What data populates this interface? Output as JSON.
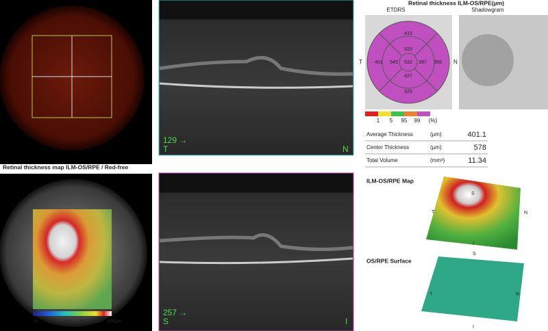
{
  "fundus_oct": {
    "scan_top": {
      "index_label": "129 →",
      "left": "T",
      "right": "N"
    },
    "scan_bottom": {
      "index_label": "257 →",
      "left": "S",
      "right": "I"
    }
  },
  "thickness_map": {
    "title": "Retinal thickness map ILM-OS/RPE / Red-free",
    "scale_labels": [
      0,
      100,
      200,
      300,
      400,
      "500µm"
    ]
  },
  "report": {
    "title": "Retinal thickness ILM-OS/RPE(µm)",
    "etdrs_label": "ETDRS",
    "shadowgram_label": "Shadowgram",
    "etdrs": {
      "superior_outer": 415,
      "superior_inner": 525,
      "temporal_outer": 401,
      "temporal_inner": 545,
      "center": 532,
      "nasal_inner": 397,
      "nasal_outer": 358,
      "inferior_inner": 427,
      "inferior_outer": 325,
      "temporal_side": "T",
      "nasal_side": "N"
    },
    "percentile_legend": {
      "ticks": [
        1,
        5,
        95,
        99
      ],
      "unit": "(%)"
    },
    "table": {
      "rows": [
        [
          "Average Thickness",
          "(µm)",
          401.1
        ],
        [
          "Center Thickness",
          "(µm)",
          578
        ],
        [
          "Total Volume",
          "(mm³)",
          11.34
        ]
      ]
    },
    "map_3d": {
      "title": "ILM-OS/RPE Map",
      "orientation": [
        "S",
        "T",
        "N",
        "I"
      ]
    },
    "surface_3d": {
      "title": "OS/RPE Surface",
      "orientation": [
        "S",
        "T",
        "N",
        "I"
      ]
    }
  }
}
